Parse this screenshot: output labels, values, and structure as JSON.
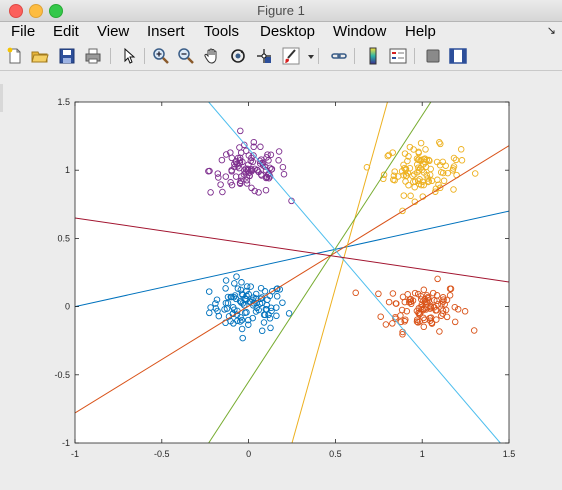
{
  "window": {
    "title": "Figure 1"
  },
  "menu": {
    "items": [
      "File",
      "Edit",
      "View",
      "Insert",
      "Tools",
      "Desktop",
      "Window",
      "Help"
    ],
    "overflow_arrow": "↘"
  },
  "toolbar": {
    "buttons": [
      "new-figure-icon",
      "open-file-icon",
      "save-icon",
      "print-icon",
      "pointer-icon",
      "zoom-in-icon",
      "zoom-out-icon",
      "pan-icon",
      "rotate-3d-icon",
      "data-cursor-icon",
      "brush-icon",
      "brush-dropdown-icon",
      "link-plot-icon",
      "colorbar-icon",
      "legend-icon",
      "hide-plot-tools-icon",
      "show-plot-tools-icon"
    ]
  },
  "chart_data": {
    "type": "scatter",
    "xlim": [
      -1,
      1.5
    ],
    "ylim": [
      -1,
      1.5
    ],
    "xticks": [
      -1,
      -0.5,
      0,
      0.5,
      1,
      1.5
    ],
    "yticks": [
      -1,
      -0.5,
      0,
      0.5,
      1,
      1.5
    ],
    "xticklabels": [
      "-1",
      "-0.5",
      "0",
      "0.5",
      "1",
      "1.5"
    ],
    "yticklabels": [
      "-1",
      "-0.5",
      "0",
      "0.5",
      "1",
      "1.5"
    ],
    "grid": false,
    "marker": "open-circle",
    "clusters": [
      {
        "color": "#0072bd",
        "center": [
          0.0,
          0.0
        ],
        "spread": 0.11,
        "count": 100
      },
      {
        "color": "#d95319",
        "center": [
          1.0,
          0.0
        ],
        "spread": 0.11,
        "count": 100
      },
      {
        "color": "#edb120",
        "center": [
          1.0,
          1.0
        ],
        "spread": 0.11,
        "count": 100
      },
      {
        "color": "#7e2f8e",
        "center": [
          0.0,
          1.0
        ],
        "spread": 0.11,
        "count": 100
      }
    ],
    "lines": [
      {
        "color": "#0072bd",
        "x": [
          -1,
          1.5
        ],
        "y": [
          0.0,
          0.7
        ]
      },
      {
        "color": "#d95319",
        "x": [
          -1,
          1.5
        ],
        "y": [
          -0.78,
          1.18
        ]
      },
      {
        "color": "#edb120",
        "x": [
          0.25,
          0.8
        ],
        "y": [
          -1,
          1.5
        ]
      },
      {
        "color": "#77ac30",
        "x": [
          -0.23,
          1.05
        ],
        "y": [
          -1,
          1.5
        ]
      },
      {
        "color": "#4dbeee",
        "x": [
          -0.23,
          1.45
        ],
        "y": [
          1.5,
          -1
        ]
      },
      {
        "color": "#a2142f",
        "x": [
          -1,
          1.5
        ],
        "y": [
          0.65,
          0.18
        ]
      }
    ]
  }
}
